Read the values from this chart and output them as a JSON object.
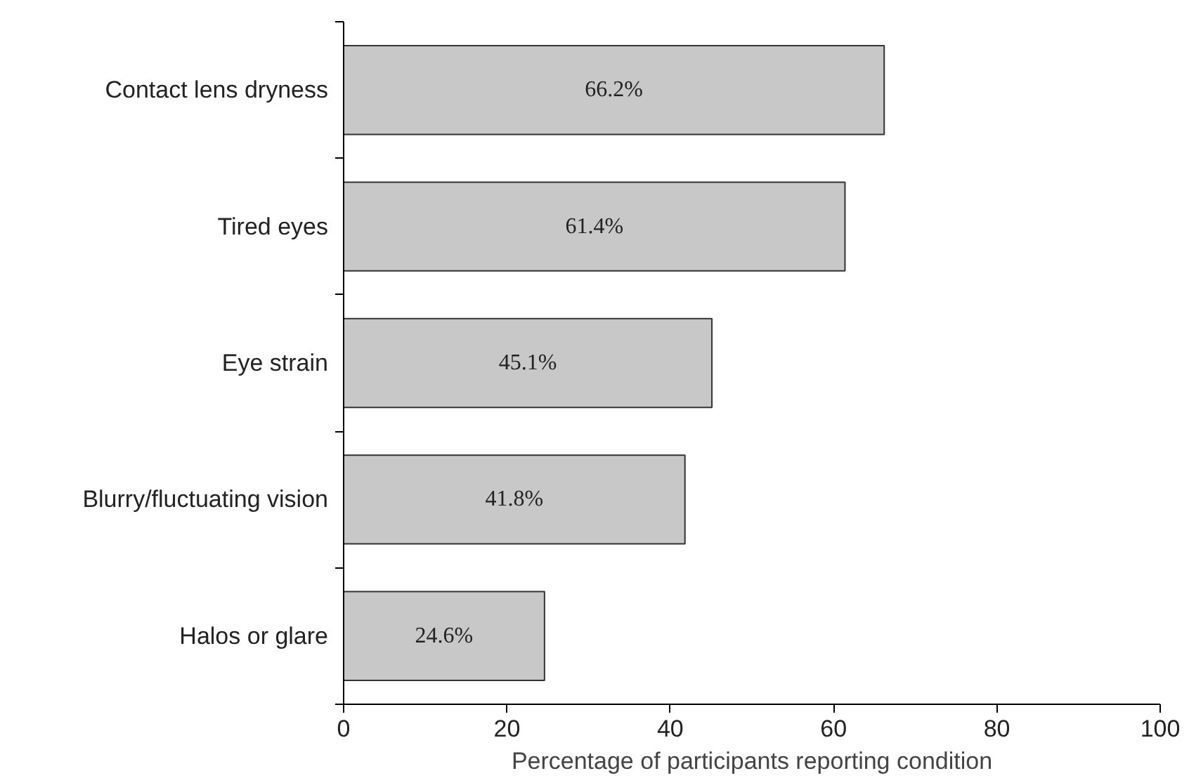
{
  "chart_data": {
    "type": "bar",
    "orientation": "horizontal",
    "xlabel": "Percentage of participants reporting condition",
    "categories": [
      "Contact lens dryness",
      "Tired eyes",
      "Eye strain",
      "Blurry/fluctuating vision",
      "Halos or glare"
    ],
    "values": [
      66.2,
      61.4,
      45.1,
      41.8,
      24.6
    ],
    "value_labels": [
      "66.2%",
      "61.4%",
      "45.1%",
      "41.8%",
      "24.6%"
    ],
    "color": "#c8c8c8",
    "xlim": [
      0,
      100
    ],
    "xticks": [
      0,
      20,
      40,
      60,
      80,
      100
    ],
    "grid": false
  }
}
